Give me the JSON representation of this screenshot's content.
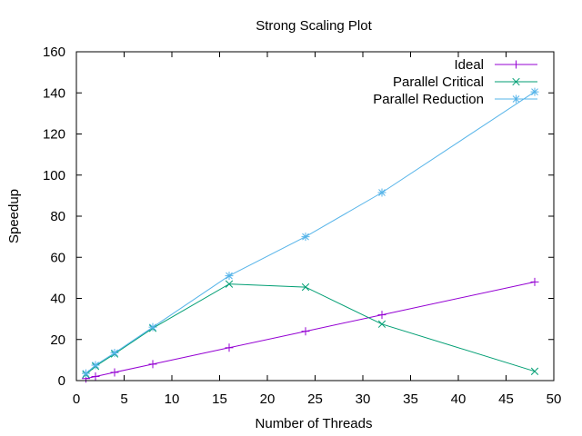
{
  "chart_data": {
    "type": "line",
    "title": "Strong Scaling Plot",
    "xlabel": "Number of Threads",
    "ylabel": "Speedup",
    "xlim": [
      0,
      50
    ],
    "ylim": [
      0,
      160
    ],
    "xticks": [
      0,
      5,
      10,
      15,
      20,
      25,
      30,
      35,
      40,
      45,
      50
    ],
    "yticks": [
      0,
      20,
      40,
      60,
      80,
      100,
      120,
      140,
      160
    ],
    "grid": false,
    "legend_position": "top-right",
    "series": [
      {
        "name": "Ideal",
        "color": "#9400d3",
        "marker": "plus",
        "x": [
          1,
          2,
          4,
          8,
          16,
          24,
          32,
          48
        ],
        "y": [
          1,
          2,
          4,
          8,
          16,
          24,
          32,
          48
        ]
      },
      {
        "name": "Parallel Critical",
        "color": "#009e73",
        "marker": "cross",
        "x": [
          1,
          2,
          4,
          8,
          16,
          24,
          32,
          48
        ],
        "y": [
          3,
          7,
          13,
          25.5,
          47,
          45.5,
          27.5,
          4.5
        ]
      },
      {
        "name": "Parallel Reduction",
        "color": "#56b4e9",
        "marker": "star",
        "x": [
          1,
          2,
          4,
          8,
          16,
          24,
          32,
          48
        ],
        "y": [
          3.5,
          7.5,
          13.5,
          26,
          51,
          70,
          91.5,
          140.5
        ]
      }
    ]
  }
}
